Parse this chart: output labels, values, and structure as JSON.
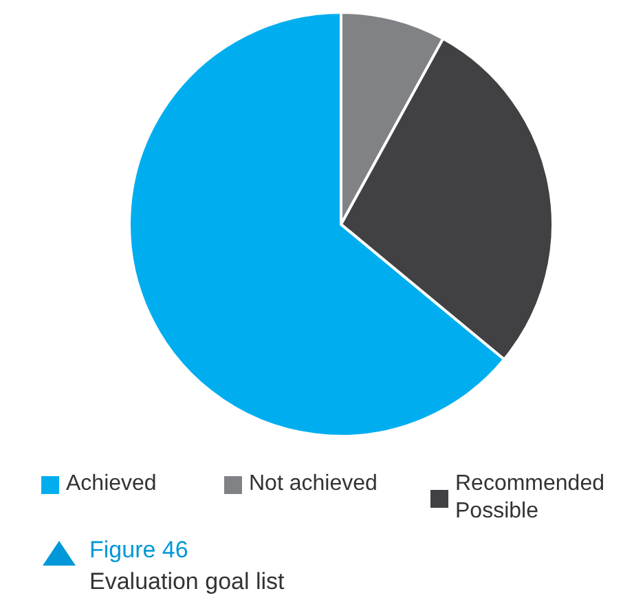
{
  "chart_data": {
    "type": "pie",
    "title": "Figure 46",
    "subtitle": "Evaluation goal list",
    "categories": [
      "Achieved",
      "Not achieved",
      "Recommended Possible"
    ],
    "values": [
      64,
      8,
      28
    ],
    "colors": [
      "#00aeef",
      "#808285",
      "#414042"
    ],
    "legend": "bottom"
  }
}
